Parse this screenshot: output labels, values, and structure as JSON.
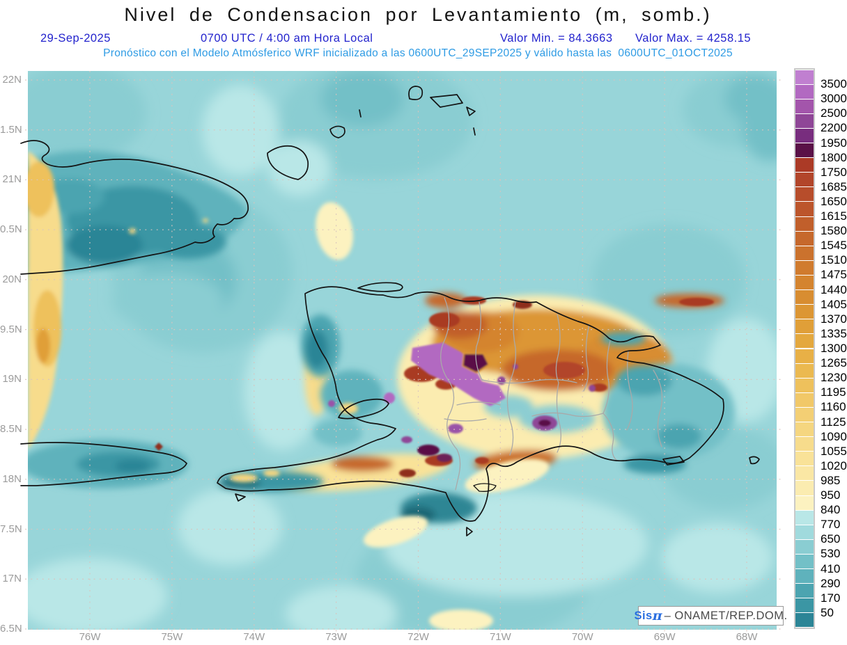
{
  "header": {
    "title": "Nivel de Condensacion por Levantamiento (m, somb.)",
    "date": "29-Sep-2025",
    "time_label": "0700 UTC / 4:00 am Hora Local",
    "min_label": "Valor Min. = 84.3663",
    "max_label": "Valor Max. = 4258.15",
    "model_line": "Pronóstico con el Modelo Atmósferico WRF inicializado a las 0600UTC_29SEP2025 y válido hasta las  0600UTC_01OCT2025"
  },
  "axes": {
    "x_tick_labels": [
      "76W",
      "75W",
      "74W",
      "73W",
      "72W",
      "71W",
      "70W",
      "69W",
      "68W"
    ],
    "y_tick_labels": [
      "22N",
      "1.5N",
      "21N",
      "0.5N",
      "20N",
      "9.5N",
      "19N",
      "8.5N",
      "18N",
      "7.5N",
      "17N",
      "6.5N"
    ]
  },
  "colorbar": {
    "tick_labels": [
      "3500",
      "3000",
      "2500",
      "2200",
      "1950",
      "1800",
      "1750",
      "1685",
      "1650",
      "1615",
      "1580",
      "1545",
      "1510",
      "1475",
      "1440",
      "1405",
      "1370",
      "1335",
      "1300",
      "1265",
      "1230",
      "1195",
      "1160",
      "1125",
      "1090",
      "1055",
      "1020",
      "985",
      "950",
      "840",
      "770",
      "650",
      "530",
      "410",
      "290",
      "170",
      "50"
    ],
    "segment_colors": [
      "#c07fd0",
      "#b269c1",
      "#a355ab",
      "#8f4697",
      "#782d7e",
      "#5a1147",
      "#ab3a26",
      "#b2452a",
      "#b74d2b",
      "#bc552b",
      "#c15f2b",
      "#c6682c",
      "#cb722d",
      "#d07b2e",
      "#d4842f",
      "#d88d31",
      "#dc9634",
      "#e09f38",
      "#e4a83e",
      "#e8b046",
      "#ebb950",
      "#eec15c",
      "#f1c868",
      "#f3cf74",
      "#f5d680",
      "#f7dc8c",
      "#f9e298",
      "#fae7a4",
      "#fbecb0",
      "#fcf2c0",
      "#b9e7e7",
      "#a0dadd",
      "#8acdd2",
      "#73c0c7",
      "#5fb2bc",
      "#4ca4b0",
      "#3b96a4",
      "#2c8596"
    ]
  },
  "watermark": {
    "sys_prefix": "Sis",
    "sys_pi": "π",
    "separator": "– ",
    "org": "ONAMET/REP.DOM."
  },
  "theme": {
    "title_black": "#141414",
    "subtitle_blue": "#2323cd",
    "model_blue": "#2e9be4",
    "axis_gray": "#9b9b9b",
    "grid_dot": "#d9c4bd",
    "ocean_base": "#98d5d9",
    "coastline": "#131313",
    "province_border": "#a9a9a9"
  }
}
